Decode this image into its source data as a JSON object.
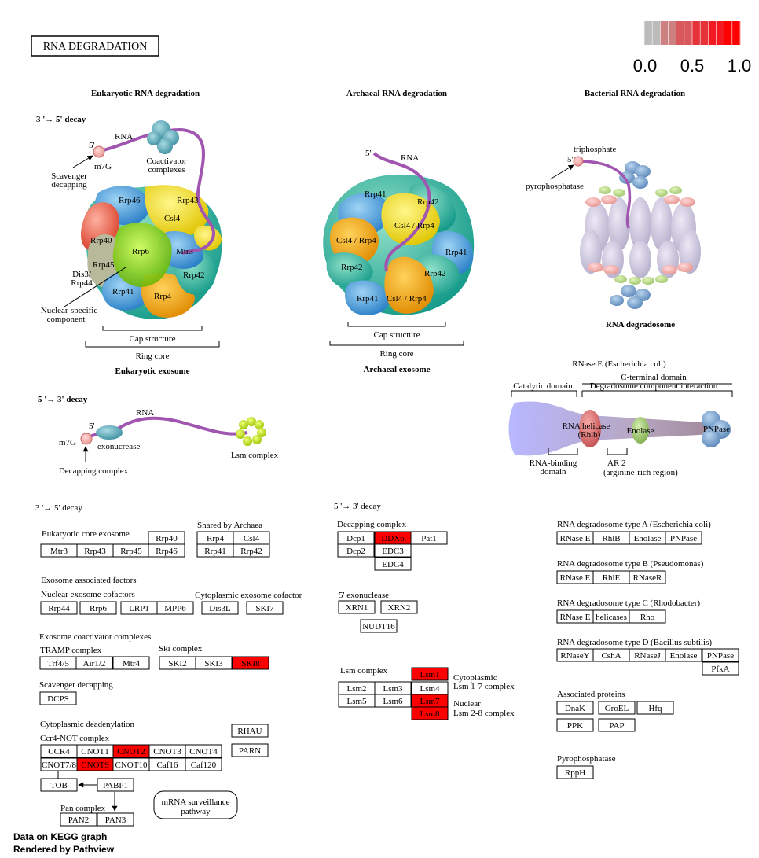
{
  "title": "RNA  DEGRADATION",
  "legend": {
    "ticks": [
      "0.0",
      "0.5",
      "1.0"
    ],
    "colors": [
      "#bbbbbb",
      "#cc8080",
      "#d9585c",
      "#e6333a",
      "#f21a20",
      "#ff0000"
    ]
  },
  "illustration": {
    "eukaryotic": {
      "heading": "Eukaryotic RNA degradation",
      "decay": "3 '→ 5' decay",
      "rna": "RNA",
      "five_prime": "5'",
      "m7g": "m7G",
      "scavenger": [
        "Scavenger",
        "decapping"
      ],
      "coactivator": [
        "Coactivator",
        "complexes"
      ],
      "subunits": [
        "Rrp46",
        "Rrp43",
        "Csl4",
        "Rrp40",
        "Rrp6",
        "Mtr3",
        "Rrp45",
        "Rrp42",
        "Rrp41",
        "Rrp4"
      ],
      "dis3": [
        "Dis3/",
        "Rrp44"
      ],
      "nuclear_specific": [
        "Nuclear-specific",
        "component"
      ],
      "cap": "Cap structure",
      "ring": "Ring core",
      "exosome": "Eukaryotic exosome"
    },
    "archaeal": {
      "heading": "Archaeal RNA degradation",
      "five_prime": "5'",
      "rna": "RNA",
      "subunits": [
        "Rrp41",
        "Rrp42",
        "Csl4 / Rrp4",
        "Csl4 / Rrp4",
        "Rrp41",
        "Rrp42",
        "Rrp42",
        "Rrp41",
        "Csl4 / Rrp4"
      ],
      "cap": "Cap structure",
      "ring": "Ring core",
      "exosome": "Archaeal exosome"
    },
    "bacterial": {
      "heading": "Bacterial RNA degradation",
      "triphosphate": "triphosphate",
      "five_prime": "5'",
      "pyrophosphatase": "pyrophosphatase",
      "degradosome": "RNA degradosome",
      "rnase_e": "RNase E (Escherichia coli)",
      "c_terminal": "C-terminal domain",
      "catalytic": "Catalytic domain",
      "interaction": "Degradosome component interaction",
      "helicase": [
        "RNA helicase",
        "(Rhlb)"
      ],
      "enolase": "Enolase",
      "pnpase": "PNPase",
      "rna_binding": [
        "RNA-binding",
        "domain"
      ],
      "ar2": [
        "AR 2",
        "(arginine-rich region)"
      ]
    },
    "five_three": {
      "heading": "5 '→ 3' decay",
      "rna": "RNA",
      "five_prime": "5'",
      "m7g": "m7G",
      "exonuclease": "exonucrease",
      "lsm": "Lsm complex",
      "decapping": "Decapping complex"
    }
  },
  "sections": {
    "left_heading": "3 '→ 5' decay",
    "mid_heading": "5 '→ 3' decay",
    "euk_core": "Eukaryotic core exosome",
    "shared": "Shared by Archaea",
    "assoc": "Exosome associated factors",
    "nuclear_cof": "Nuclear exosome cofactors",
    "cyto_cof": "Cytoplasmic exosome cofactor",
    "coact": "Exosome coactivator complexes",
    "tramp": "TRAMP complex",
    "ski": "Ski complex",
    "scavenger": "Scavenger decapping",
    "cyto_dead": "Cytoplasmic deadenylation",
    "ccr4": "Ccr4-NOT complex",
    "pan": "Pan complex",
    "surveillance": [
      "mRNA surveillance",
      "pathway"
    ],
    "decapping": "Decapping complex",
    "exonuclease": "5' exonuclease",
    "lsm": "Lsm complex",
    "cytoplasmic": [
      "Cytoplasmic",
      "Lsm 1-7 complex"
    ],
    "nuclear": [
      "Nuclear",
      "Lsm 2-8 complex"
    ],
    "type_a": "RNA degradosome type A (Escherichia coli)",
    "type_b": "RNA degradosome type B (Pseudomonas)",
    "type_c": "RNA degradosome type C (Rhodobacter)",
    "type_d": "RNA degradosome type D (Bacillus subtilis)",
    "assoc_proteins": "Associated proteins",
    "pyrophosphatase": "Pyrophosphatase"
  },
  "genes": [
    {
      "label": "Rrp40",
      "hit": false
    },
    {
      "label": "Mtr3",
      "hit": false
    },
    {
      "label": "Rrp43",
      "hit": false
    },
    {
      "label": "Rrp45",
      "hit": false
    },
    {
      "label": "Rrp46",
      "hit": false
    },
    {
      "label": "Rrp4",
      "hit": false
    },
    {
      "label": "Csl4",
      "hit": false
    },
    {
      "label": "Rrp41",
      "hit": false
    },
    {
      "label": "Rrp42",
      "hit": false
    },
    {
      "label": "Rrp44",
      "hit": false
    },
    {
      "label": "Rrp6",
      "hit": false
    },
    {
      "label": "LRP1",
      "hit": false
    },
    {
      "label": "MPP6",
      "hit": false
    },
    {
      "label": "Dis3L",
      "hit": false
    },
    {
      "label": "SKI7",
      "hit": false
    },
    {
      "label": "Trf4/5",
      "hit": false
    },
    {
      "label": "Air1/2",
      "hit": false
    },
    {
      "label": "Mtr4",
      "hit": false
    },
    {
      "label": "SKI2",
      "hit": false
    },
    {
      "label": "SKI3",
      "hit": false
    },
    {
      "label": "SKI8",
      "hit": true
    },
    {
      "label": "DCPS",
      "hit": false
    },
    {
      "label": "RHAU",
      "hit": false
    },
    {
      "label": "PARN",
      "hit": false
    },
    {
      "label": "CCR4",
      "hit": false
    },
    {
      "label": "CNOT1",
      "hit": false
    },
    {
      "label": "CNOT2",
      "hit": true
    },
    {
      "label": "CNOT3",
      "hit": false
    },
    {
      "label": "CNOT4",
      "hit": false
    },
    {
      "label": "CNOT7/8",
      "hit": false
    },
    {
      "label": "CNOT9",
      "hit": true
    },
    {
      "label": "CNOT10",
      "hit": false
    },
    {
      "label": "Caf16",
      "hit": false
    },
    {
      "label": "Caf120",
      "hit": false
    },
    {
      "label": "TOB",
      "hit": false
    },
    {
      "label": "PABP1",
      "hit": false
    },
    {
      "label": "PAN2",
      "hit": false
    },
    {
      "label": "PAN3",
      "hit": false
    },
    {
      "label": "Dcp1",
      "hit": false
    },
    {
      "label": "DDX6",
      "hit": true
    },
    {
      "label": "Pat1",
      "hit": false
    },
    {
      "label": "Dcp2",
      "hit": false
    },
    {
      "label": "EDC3",
      "hit": false
    },
    {
      "label": "EDC4",
      "hit": false
    },
    {
      "label": "XRN1",
      "hit": false
    },
    {
      "label": "XRN2",
      "hit": false
    },
    {
      "label": "NUDT16",
      "hit": false
    },
    {
      "label": "Lsm1",
      "hit": true
    },
    {
      "label": "Lsm2",
      "hit": false
    },
    {
      "label": "Lsm3",
      "hit": false
    },
    {
      "label": "Lsm4",
      "hit": false
    },
    {
      "label": "Lsm5",
      "hit": false
    },
    {
      "label": "Lsm6",
      "hit": false
    },
    {
      "label": "Lsm7",
      "hit": true
    },
    {
      "label": "Lsm8",
      "hit": true
    },
    {
      "label": "RNase E",
      "hit": false
    },
    {
      "label": "RhlB",
      "hit": false
    },
    {
      "label": "Enolase",
      "hit": false
    },
    {
      "label": "PNPase",
      "hit": false
    },
    {
      "label": "RNase E",
      "hit": false
    },
    {
      "label": "RhlE",
      "hit": false
    },
    {
      "label": "RNaseR",
      "hit": false
    },
    {
      "label": "RNase E",
      "hit": false
    },
    {
      "label": "helicases",
      "hit": false
    },
    {
      "label": "Rho",
      "hit": false
    },
    {
      "label": "RNaseY",
      "hit": false
    },
    {
      "label": "CshA",
      "hit": false
    },
    {
      "label": "RNaseJ",
      "hit": false
    },
    {
      "label": "Enolase",
      "hit": false
    },
    {
      "label": "PNPase",
      "hit": false
    },
    {
      "label": "PfkA",
      "hit": false
    },
    {
      "label": "DnaK",
      "hit": false
    },
    {
      "label": "GroEL",
      "hit": false
    },
    {
      "label": "Hfq",
      "hit": false
    },
    {
      "label": "PPK",
      "hit": false
    },
    {
      "label": "PAP",
      "hit": false
    },
    {
      "label": "RppH",
      "hit": false
    }
  ],
  "footer": [
    "Data on KEGG graph",
    "Rendered by Pathview"
  ]
}
